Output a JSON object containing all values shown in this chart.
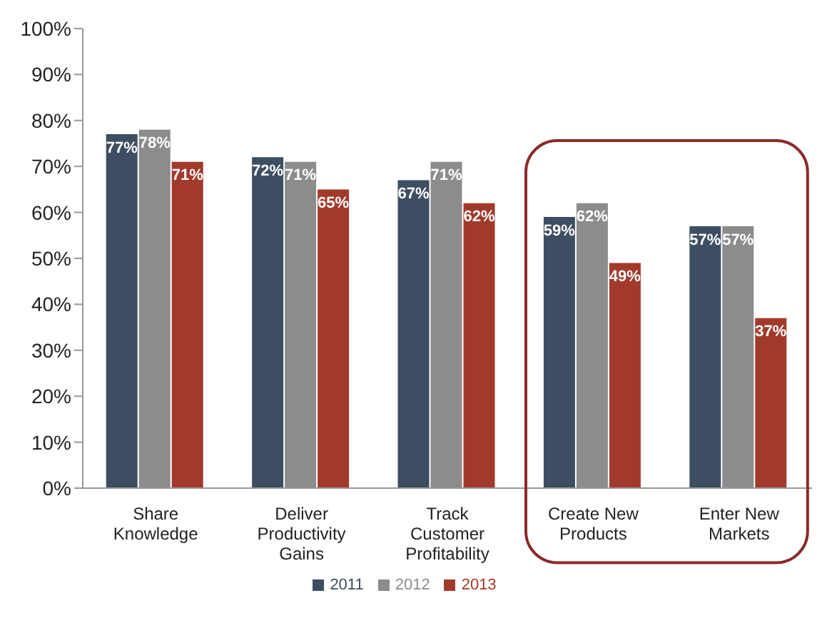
{
  "chart_data": {
    "type": "bar",
    "categories": [
      "Share Knowledge",
      "Deliver Productivity Gains",
      "Track Customer Profitability",
      "Create New Products",
      "Enter New Markets"
    ],
    "series": [
      {
        "name": "2011",
        "color": "#3e4e62",
        "values": [
          77,
          72,
          67,
          59,
          57
        ],
        "value_labels": [
          "77%",
          "72%",
          "67%",
          "59%",
          "57%"
        ]
      },
      {
        "name": "2012",
        "color": "#8c8c8c",
        "values": [
          78,
          71,
          71,
          62,
          57
        ],
        "value_labels": [
          "78%",
          "71%",
          "71%",
          "62%",
          "57%"
        ]
      },
      {
        "name": "2013",
        "color": "#a23a2c",
        "values": [
          71,
          65,
          62,
          49,
          37
        ],
        "value_labels": [
          "71%",
          "65%",
          "62%",
          "49%",
          "37%"
        ]
      }
    ],
    "ylim": [
      0,
      100
    ],
    "yticks": [
      {
        "value": 0,
        "label": "0%"
      },
      {
        "value": 10,
        "label": "10%"
      },
      {
        "value": 20,
        "label": "20%"
      },
      {
        "value": 30,
        "label": "30%"
      },
      {
        "value": 40,
        "label": "40%"
      },
      {
        "value": 50,
        "label": "50%"
      },
      {
        "value": 60,
        "label": "60%"
      },
      {
        "value": 70,
        "label": "70%"
      },
      {
        "value": 80,
        "label": "80%"
      },
      {
        "value": 90,
        "label": "90%"
      },
      {
        "value": 100,
        "label": "100%"
      }
    ],
    "grid": false,
    "legend": "bottom"
  }
}
